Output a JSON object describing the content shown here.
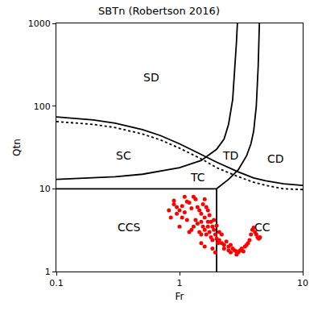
{
  "chart_data": {
    "type": "scatter",
    "title": "SBTn (Robertson 2016)",
    "x_label": "Fr",
    "y_label": "Qtn",
    "log": true,
    "grid": false,
    "xlim": [
      0.1,
      10
    ],
    "ylim": [
      1,
      1000
    ],
    "xticks": [
      0.1,
      1,
      10
    ],
    "yticks": [
      1,
      10,
      100,
      1000
    ],
    "series": [
      {
        "type": "line",
        "color": "#000000",
        "line_style": "solid",
        "x": [
          0.1,
          0.2,
          0.3,
          0.5,
          0.7,
          1,
          1.5,
          2,
          3,
          4,
          5,
          7,
          10
        ],
        "values": [
          74,
          68,
          62,
          52,
          44,
          35,
          26,
          21,
          16,
          13.5,
          12.5,
          11.5,
          11
        ]
      },
      {
        "type": "line",
        "color": "#000000",
        "line_style": "dotted",
        "x": [
          0.1,
          0.2,
          0.3,
          0.5,
          0.7,
          1,
          1.5,
          2,
          3,
          4,
          5,
          7,
          10
        ],
        "values": [
          65,
          60,
          55,
          46,
          39,
          31,
          23,
          18,
          14,
          12,
          11,
          10,
          9.8
        ]
      },
      {
        "type": "line",
        "color": "#000000",
        "line_style": "solid",
        "x": [
          0.1,
          0.2,
          0.3,
          0.5,
          0.7,
          1,
          1.5,
          2,
          2.3,
          2.5,
          2.7,
          2.8,
          2.9,
          2.95
        ],
        "values": [
          13,
          13.5,
          14,
          15,
          16.5,
          18,
          22,
          30,
          40,
          60,
          120,
          250,
          600,
          1000
        ]
      },
      {
        "type": "line",
        "color": "#000000",
        "line_style": "solid",
        "x": [
          2,
          2.5,
          3,
          3.5,
          3.8,
          4,
          4.2,
          4.35,
          4.45
        ],
        "values": [
          10,
          13,
          17,
          25,
          35,
          50,
          100,
          300,
          1000
        ]
      },
      {
        "type": "line",
        "color": "#000000",
        "line_style": "solid",
        "x": [
          0.1,
          2
        ],
        "values": [
          10,
          10
        ]
      },
      {
        "type": "line",
        "color": "#000000",
        "line_style": "solid",
        "x": [
          2,
          2
        ],
        "values": [
          1,
          10
        ]
      },
      {
        "type": "scatter",
        "color": "#ff0000",
        "marker": "circle",
        "x": [
          0.9,
          0.9,
          0.95,
          1.0,
          1.05,
          1.1,
          1.15,
          1.2,
          1.25,
          1.3,
          1.35,
          1.4,
          1.45,
          1.5,
          1.55,
          1.6,
          1.65,
          1.7,
          0.95,
          1.05,
          1.1,
          1.15,
          1.2,
          1.25,
          1.3,
          1.35,
          1.4,
          1.45,
          1.5,
          1.5,
          1.55,
          1.6,
          1.6,
          1.65,
          1.7,
          1.7,
          1.75,
          1.75,
          1.8,
          1.8,
          1.85,
          1.85,
          1.9,
          1.9,
          1.95,
          2.0,
          2.0,
          2.05,
          2.1,
          2.1,
          2.2,
          2.2,
          2.3,
          2.3,
          2.4,
          2.5,
          2.5,
          2.6,
          2.7,
          2.8,
          2.9,
          3.0,
          3.1,
          3.2,
          3.3,
          3.4,
          3.5,
          3.6,
          3.7,
          3.8,
          3.9,
          4.0,
          4.1,
          4.2,
          4.3,
          4.4,
          4.5,
          1.85,
          1.95,
          2.6,
          2.9,
          1.0,
          0.85,
          0.82,
          1.5,
          1.6
        ],
        "values": [
          7.2,
          6.5,
          6,
          5.5,
          6.2,
          8,
          7,
          6.8,
          5.8,
          8,
          7.5,
          6,
          5.5,
          5,
          6.5,
          7.5,
          6,
          5.5,
          5,
          4.5,
          5.2,
          4.2,
          3,
          3.2,
          3.5,
          4.2,
          3.8,
          3,
          2.8,
          4,
          3.5,
          4.5,
          3.2,
          2.8,
          4,
          3.5,
          4.8,
          3,
          4,
          2.6,
          3.5,
          2.4,
          3.2,
          4.2,
          2.8,
          2.5,
          3.6,
          2.2,
          3,
          2.4,
          2.2,
          2.8,
          2.1,
          1.9,
          2.3,
          2,
          1.8,
          2.1,
          1.9,
          1.8,
          1.75,
          1.7,
          1.8,
          1.9,
          1.75,
          2,
          2.1,
          2.2,
          2.4,
          2.8,
          3.2,
          3.4,
          3,
          2.8,
          2.6,
          2.5,
          2.6,
          1.9,
          1.7,
          1.7,
          1.6,
          3.5,
          4.5,
          5.5,
          2.2,
          2.0
        ]
      }
    ],
    "annotations": [
      {
        "text": "SD",
        "x": 0.59,
        "y": 222
      },
      {
        "text": "SC",
        "x": 0.35,
        "y": 25
      },
      {
        "text": "TD",
        "x": 2.6,
        "y": 25
      },
      {
        "text": "CD",
        "x": 6.0,
        "y": 23
      },
      {
        "text": "TC",
        "x": 1.4,
        "y": 13.8
      },
      {
        "text": "CCS",
        "x": 0.39,
        "y": 3.4
      },
      {
        "text": "CC",
        "x": 4.7,
        "y": 3.4
      }
    ]
  }
}
